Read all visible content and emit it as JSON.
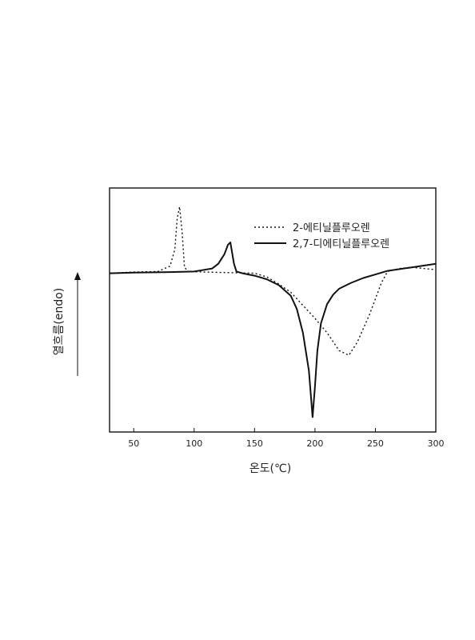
{
  "chart_data": {
    "type": "line",
    "xlabel": "온도(℃)",
    "ylabel": "열흐름(endo)",
    "xlim": [
      30,
      300
    ],
    "xticks": [
      50,
      100,
      150,
      200,
      250,
      300
    ],
    "grid": false,
    "legend_position": "top-right",
    "colors": {
      "line": "#111111",
      "frame": "#111111"
    },
    "series": [
      {
        "name": "2-에티닐플루오렌",
        "style": "dotted",
        "x": [
          30,
          50,
          70,
          80,
          84,
          86,
          88,
          90,
          92,
          95,
          110,
          130,
          150,
          160,
          170,
          180,
          190,
          200,
          210,
          220,
          228,
          235,
          245,
          255,
          260,
          270,
          280,
          290,
          300
        ],
        "y": [
          0,
          0.1,
          0.15,
          0.6,
          2.0,
          4.6,
          5.6,
          3.5,
          0.5,
          0.15,
          0.1,
          0.05,
          0,
          -0.3,
          -0.9,
          -1.6,
          -2.7,
          -3.8,
          -5.0,
          -6.5,
          -6.9,
          -5.8,
          -3.5,
          -0.8,
          0.15,
          0.4,
          0.5,
          0.4,
          0.3
        ]
      },
      {
        "name": "2,7-디에티닐플루오렌",
        "style": "solid",
        "x": [
          30,
          50,
          80,
          100,
          115,
          120,
          125,
          128,
          130,
          131,
          133,
          135,
          140,
          150,
          160,
          170,
          180,
          185,
          190,
          195,
          198,
          200,
          202,
          205,
          210,
          215,
          220,
          230,
          240,
          250,
          260,
          280,
          300
        ],
        "y": [
          0,
          0.05,
          0.1,
          0.15,
          0.4,
          0.8,
          1.6,
          2.4,
          2.6,
          2.0,
          0.8,
          0.15,
          0,
          -0.2,
          -0.5,
          -1.0,
          -1.9,
          -3.0,
          -5.0,
          -8.2,
          -12.1,
          -9.5,
          -6.5,
          -4.2,
          -2.6,
          -1.8,
          -1.3,
          -0.8,
          -0.4,
          -0.1,
          0.2,
          0.5,
          0.8
        ]
      }
    ]
  }
}
